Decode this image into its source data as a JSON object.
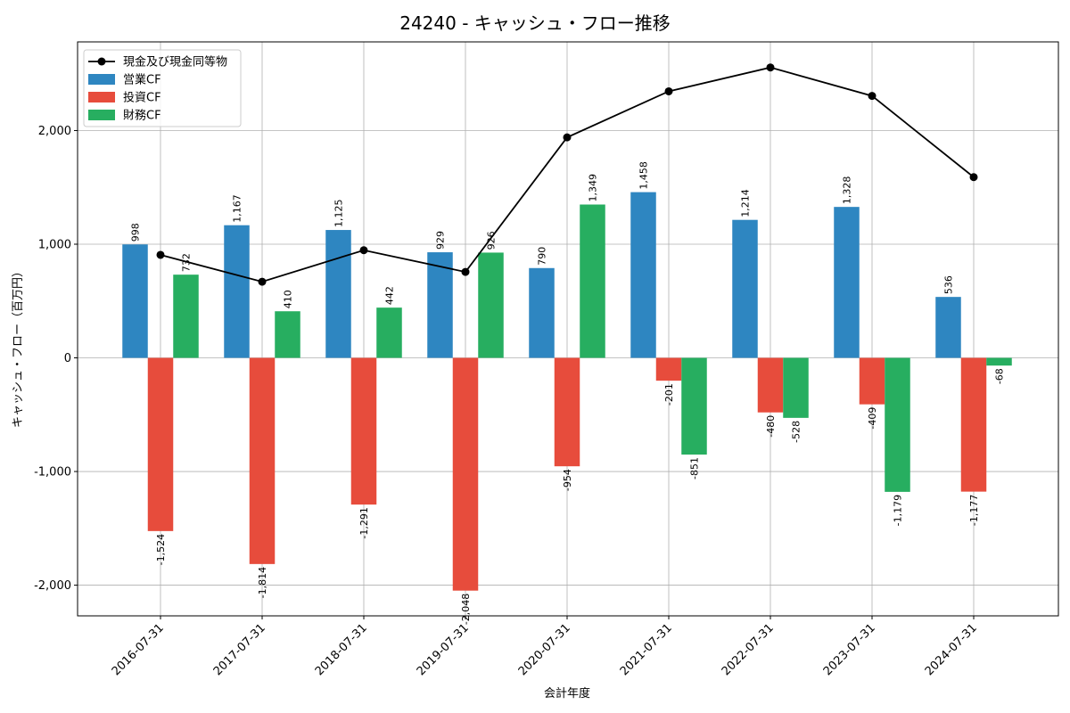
{
  "chart_data": {
    "type": "bar",
    "title": "24240 - キャッシュ・フロー推移",
    "xlabel": "会計年度",
    "ylabel": "キャッシュ・フロー（百万円）",
    "categories": [
      "2016-07-31",
      "2017-07-31",
      "2018-07-31",
      "2019-07-31",
      "2020-07-31",
      "2021-07-31",
      "2022-07-31",
      "2023-07-31",
      "2024-07-31"
    ],
    "ylim": [
      -2270,
      2780
    ],
    "yticks": [
      -2000,
      -1000,
      0,
      1000,
      2000
    ],
    "ytick_labels": [
      "-2,000",
      "-1,000",
      "0",
      "1,000",
      "2,000"
    ],
    "grid": true,
    "legend_position": "top-left",
    "series": [
      {
        "name": "営業CF",
        "type": "bar",
        "color": "#2e86c1",
        "values": [
          998,
          1167,
          1125,
          929,
          790,
          1458,
          1214,
          1328,
          536
        ],
        "labels": [
          "998",
          "1,167",
          "1,125",
          "929",
          "790",
          "1,458",
          "1,214",
          "1,328",
          "536"
        ]
      },
      {
        "name": "投資CF",
        "type": "bar",
        "color": "#e74c3c",
        "values": [
          -1524,
          -1814,
          -1291,
          -2048,
          -954,
          -201,
          -480,
          -409,
          -1177
        ],
        "labels": [
          "-1,524",
          "-1,814",
          "-1,291",
          "-2,048",
          "-954",
          "-201",
          "-480",
          "-409",
          "-1,177"
        ]
      },
      {
        "name": "財務CF",
        "type": "bar",
        "color": "#27ae60",
        "values": [
          732,
          410,
          442,
          926,
          1349,
          -851,
          -528,
          -1179,
          -68
        ],
        "labels": [
          "732",
          "410",
          "442",
          "926",
          "1,349",
          "-851",
          "-528",
          "-1,179",
          "-68"
        ]
      },
      {
        "name": "現金及び現金同等物",
        "type": "line",
        "color": "#000000",
        "values": [
          906,
          670,
          947,
          756,
          1940,
          2345,
          2555,
          2305,
          1590
        ]
      }
    ]
  }
}
